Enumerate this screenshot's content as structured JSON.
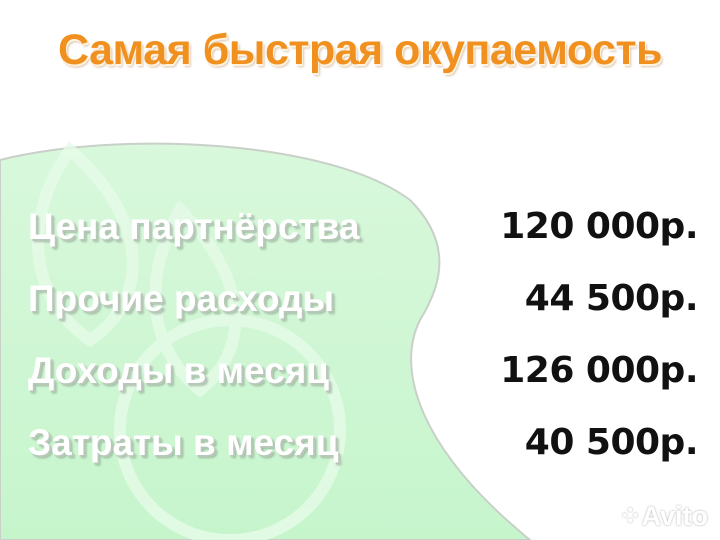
{
  "title": "Самая быстрая окупаемость",
  "rows": [
    {
      "label": "Цена партнёрства",
      "value": "120 000р."
    },
    {
      "label": "Прочие расходы",
      "value": "44 500р."
    },
    {
      "label": "Доходы в месяц",
      "value": "126 000р."
    },
    {
      "label": "Затраты в месяц",
      "value": "40 500р."
    }
  ],
  "watermark": "Avito",
  "colors": {
    "title": "#f0901e",
    "blob": "#c9f7cf",
    "values": "#111111"
  }
}
